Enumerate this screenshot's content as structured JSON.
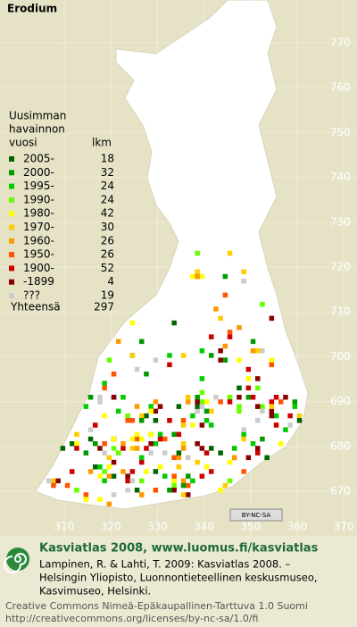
{
  "title": "Erodium",
  "legend": {
    "header": [
      "Uusimman",
      "havainnon",
      "vuosi"
    ],
    "count_header": "lkm",
    "rows": [
      {
        "label": "2005-",
        "count": 18,
        "color": "#006600"
      },
      {
        "label": "2000-",
        "count": 32,
        "color": "#009900"
      },
      {
        "label": "1995-",
        "count": 24,
        "color": "#00cc00"
      },
      {
        "label": "1990-",
        "count": 24,
        "color": "#66ff00"
      },
      {
        "label": "1980-",
        "count": 42,
        "color": "#ffff00"
      },
      {
        "label": "1970-",
        "count": 30,
        "color": "#ffcc00"
      },
      {
        "label": "1960-",
        "count": 26,
        "color": "#ff9900"
      },
      {
        "label": "1950-",
        "count": 26,
        "color": "#ff5500"
      },
      {
        "label": "1900-",
        "count": 52,
        "color": "#cc0000"
      },
      {
        "label": "-1899",
        "count": 4,
        "color": "#880000"
      },
      {
        "label": "???",
        "count": 19,
        "color": "#cccccc"
      }
    ],
    "total_label": "Yhteensä",
    "total": 297
  },
  "northing_labels": [
    770,
    760,
    750,
    740,
    730,
    720,
    710,
    700,
    690,
    680,
    670
  ],
  "easting_labels": [
    310,
    320,
    330,
    340,
    350,
    360,
    370
  ],
  "badge": "BY-NC-SA",
  "footer": {
    "heading": "Kasviatlas 2008, www.luomus.fi/kasviatlas",
    "citation": [
      "Lampinen, R. & Lahti, T. 2009: Kasviatlas 2008. –",
      "Helsingin Yliopisto, Luonnontieteellinen keskusmuseo,",
      "Kasvimuseo, Helsinki."
    ],
    "license": [
      "Creative Commons Nimeä-Epäkaupallinen-Tarttuva 1.0 Suomi",
      "http://creativecommons.org/licenses/by-nc-sa/1.0/fi"
    ]
  }
}
